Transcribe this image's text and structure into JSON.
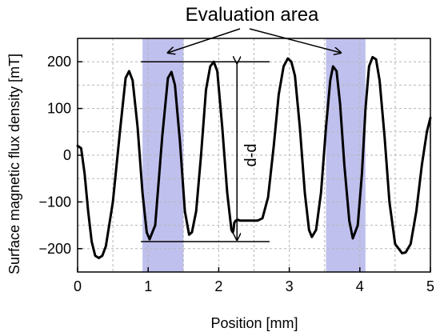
{
  "chart_data": {
    "type": "line",
    "title": "",
    "xlabel": "Position [mm]",
    "ylabel": "Surface magnetic flux density [mT]",
    "xlim": [
      0,
      5
    ],
    "ylim": [
      -250,
      250
    ],
    "xticks": [
      0,
      1,
      2,
      3,
      4,
      5
    ],
    "yticks": [
      -200,
      -100,
      0,
      100,
      200
    ],
    "grid": true,
    "series": [
      {
        "color": "#000000",
        "x": [
          0.0,
          0.05,
          0.1,
          0.15,
          0.2,
          0.25,
          0.3,
          0.35,
          0.4,
          0.5,
          0.6,
          0.68,
          0.73,
          0.78,
          0.85,
          0.92,
          0.98,
          1.02,
          1.1,
          1.2,
          1.28,
          1.33,
          1.38,
          1.45,
          1.52,
          1.58,
          1.62,
          1.68,
          1.75,
          1.82,
          1.88,
          1.93,
          1.98,
          2.05,
          2.12,
          2.18,
          2.2,
          2.21,
          2.22,
          2.24,
          2.27,
          2.3,
          2.35,
          2.45,
          2.55,
          2.62,
          2.7,
          2.78,
          2.85,
          2.92,
          2.98,
          3.03,
          3.08,
          3.15,
          3.22,
          3.28,
          3.32,
          3.38,
          3.45,
          3.52,
          3.58,
          3.62,
          3.67,
          3.72,
          3.78,
          3.85,
          3.9,
          3.97,
          4.03,
          4.08,
          4.13,
          4.18,
          4.23,
          4.28,
          4.35,
          4.42,
          4.5,
          4.6,
          4.65,
          4.72,
          4.8,
          4.88,
          4.95,
          5.0
        ],
        "y": [
          20,
          15,
          -40,
          -120,
          -185,
          -215,
          -220,
          -215,
          -195,
          -100,
          50,
          165,
          180,
          160,
          60,
          -80,
          -165,
          -180,
          -150,
          40,
          165,
          178,
          150,
          30,
          -120,
          -170,
          -165,
          -120,
          0,
          140,
          190,
          200,
          180,
          60,
          -80,
          -160,
          -165,
          -160,
          -145,
          -140,
          -138,
          -140,
          -140,
          -140,
          -140,
          -135,
          -90,
          20,
          130,
          190,
          207,
          200,
          170,
          60,
          -80,
          -160,
          -175,
          -160,
          -80,
          60,
          160,
          190,
          180,
          110,
          -20,
          -140,
          -178,
          -150,
          -40,
          100,
          190,
          210,
          205,
          160,
          40,
          -100,
          -190,
          -210,
          -208,
          -190,
          -120,
          -20,
          50,
          80
        ]
      }
    ],
    "highlight_bands": [
      [
        0.92,
        1.5
      ],
      [
        3.52,
        4.08
      ]
    ],
    "annotations": {
      "evaluation_area": "Evaluation area",
      "pp_label": "d-d"
    },
    "reference_lines_y": [
      200,
      -185
    ],
    "arrow_x": 2.1
  }
}
